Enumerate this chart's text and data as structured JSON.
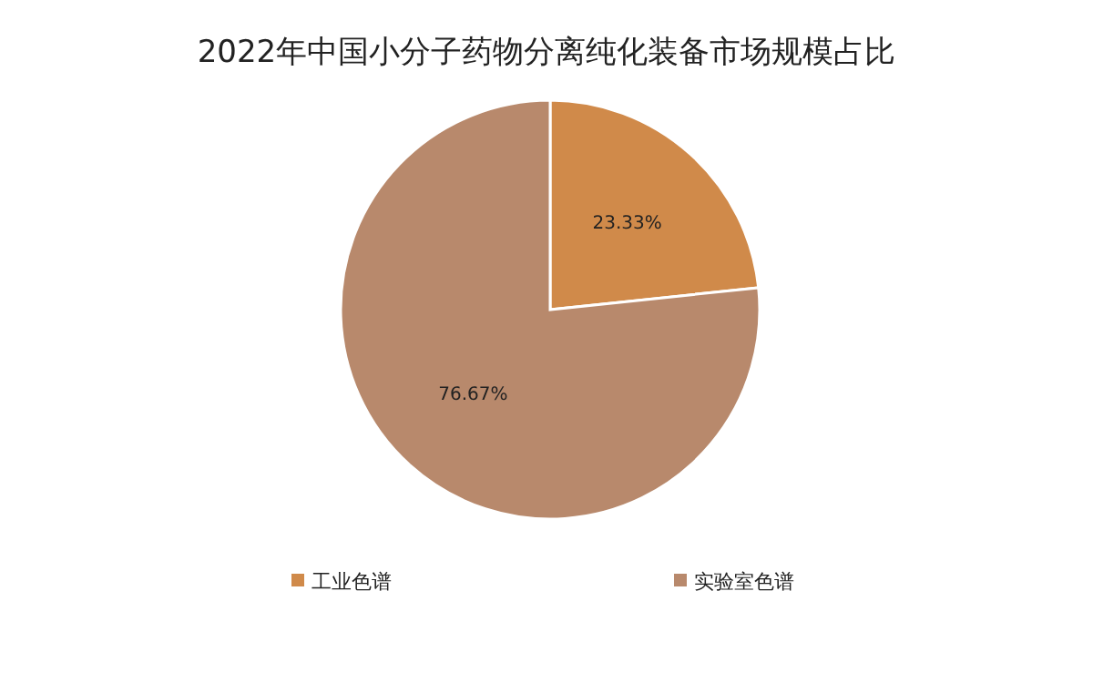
{
  "chart_data": {
    "type": "pie",
    "title": "2022年中国小分子药物分离纯化装备市场规模占比",
    "categories": [
      "工业色谱",
      "实验室色谱"
    ],
    "values": [
      23.33,
      76.67
    ],
    "colors": [
      "#d08a4a",
      "#b8896c"
    ],
    "value_labels": [
      "23.33%",
      "76.67%"
    ],
    "legend": "bottom"
  }
}
